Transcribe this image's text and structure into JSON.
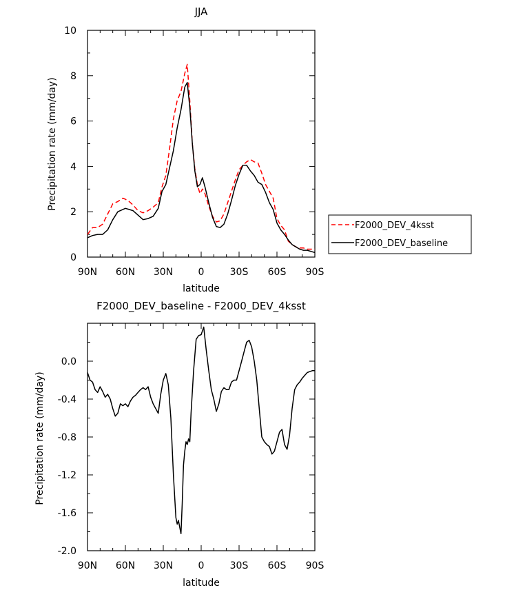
{
  "chart_data": [
    {
      "type": "line",
      "title": "JJA",
      "xlabel": "latitude",
      "ylabel": "Precipitation rate (mm/day)",
      "xlim": [
        90,
        -90
      ],
      "ylim": [
        0,
        10
      ],
      "x_ticks": [
        90,
        60,
        30,
        0,
        -30,
        -60,
        -90
      ],
      "x_tick_labels": [
        "90N",
        "60N",
        "30N",
        "0",
        "30S",
        "60S",
        "90S"
      ],
      "y_ticks": [
        0,
        2,
        4,
        6,
        8,
        10
      ],
      "y_tick_labels": [
        "0",
        "2",
        "4",
        "6",
        "8",
        "10"
      ],
      "legend_position": "outside-right",
      "series": [
        {
          "name": "F2000_DEV_4ksst",
          "color": "#ff0000",
          "style": "dashed",
          "x": [
            90,
            86,
            82,
            78,
            74,
            70,
            66,
            62,
            60,
            57,
            54,
            50,
            46,
            42,
            38,
            34,
            31,
            28,
            25,
            22,
            19,
            16,
            13,
            11,
            9,
            7,
            5,
            3,
            1,
            -1,
            -3,
            -6,
            -9,
            -12,
            -15,
            -18,
            -21,
            -24,
            -27,
            -30,
            -33,
            -36,
            -39,
            -42,
            -45,
            -48,
            -51,
            -54,
            -57,
            -60,
            -63,
            -66,
            -69,
            -72,
            -75,
            -78,
            -81,
            -84,
            -87,
            -90
          ],
          "y": [
            1.0,
            1.3,
            1.3,
            1.45,
            1.9,
            2.35,
            2.45,
            2.6,
            2.55,
            2.45,
            2.3,
            2.05,
            1.95,
            2.05,
            2.2,
            2.4,
            3.1,
            3.6,
            4.8,
            6.1,
            6.9,
            7.3,
            8.1,
            8.5,
            6.9,
            5.0,
            3.9,
            3.2,
            2.8,
            3.0,
            2.8,
            2.25,
            1.8,
            1.55,
            1.6,
            1.9,
            2.4,
            2.9,
            3.4,
            3.85,
            4.05,
            4.2,
            4.3,
            4.2,
            4.15,
            3.7,
            3.2,
            2.9,
            2.6,
            1.7,
            1.4,
            1.2,
            0.7,
            0.55,
            0.45,
            0.4,
            0.4,
            0.35,
            0.35,
            0.35
          ]
        },
        {
          "name": "F2000_DEV_baseline",
          "color": "#000000",
          "style": "solid",
          "x": [
            90,
            86,
            82,
            78,
            74,
            70,
            66,
            62,
            60,
            57,
            54,
            50,
            46,
            42,
            38,
            34,
            31,
            28,
            25,
            22,
            19,
            16,
            13,
            11,
            9,
            7,
            5,
            3,
            1,
            -1,
            -3,
            -6,
            -9,
            -12,
            -15,
            -18,
            -21,
            -24,
            -27,
            -30,
            -33,
            -36,
            -39,
            -42,
            -45,
            -48,
            -51,
            -54,
            -57,
            -60,
            -63,
            -66,
            -69,
            -72,
            -75,
            -78,
            -81,
            -84,
            -87,
            -90
          ],
          "y": [
            0.85,
            0.95,
            1.0,
            1.0,
            1.2,
            1.65,
            2.0,
            2.1,
            2.15,
            2.1,
            2.05,
            1.85,
            1.65,
            1.7,
            1.8,
            2.15,
            2.9,
            3.2,
            3.95,
            4.7,
            5.7,
            6.5,
            7.5,
            7.7,
            6.6,
            5.0,
            3.8,
            3.1,
            3.2,
            3.5,
            3.1,
            2.4,
            1.75,
            1.35,
            1.3,
            1.45,
            1.9,
            2.5,
            3.15,
            3.65,
            4.05,
            4.05,
            3.8,
            3.6,
            3.3,
            3.2,
            2.85,
            2.4,
            2.1,
            1.5,
            1.2,
            1.0,
            0.75,
            0.55,
            0.45,
            0.35,
            0.3,
            0.3,
            0.25,
            0.2
          ]
        }
      ]
    },
    {
      "type": "line",
      "title": "F2000_DEV_baseline - F2000_DEV_4ksst",
      "xlabel": "latitude",
      "ylabel": "Precipitation rate (mm/day)",
      "xlim": [
        90,
        -90
      ],
      "ylim": [
        -2.0,
        0.4
      ],
      "x_ticks": [
        90,
        60,
        30,
        0,
        -30,
        -60,
        -90
      ],
      "x_tick_labels": [
        "90N",
        "60N",
        "30N",
        "0",
        "30S",
        "60S",
        "90S"
      ],
      "y_ticks": [
        -2.0,
        -1.6,
        -1.2,
        -0.8,
        -0.4,
        0.0
      ],
      "y_tick_labels": [
        "-2.0",
        "-1.6",
        "-1.2",
        "-0.8",
        "-0.4",
        "0.0"
      ],
      "series": [
        {
          "name": "",
          "color": "#000000",
          "style": "solid",
          "x": [
            90,
            88,
            86,
            84,
            82,
            80,
            78,
            76,
            74,
            72,
            70,
            68,
            66,
            64,
            62,
            60,
            58,
            56,
            54,
            52,
            50,
            48,
            46,
            44,
            42,
            40,
            38,
            36,
            34,
            32,
            30,
            28,
            26,
            24,
            22,
            20,
            19,
            18,
            17,
            16,
            15,
            14,
            13,
            12,
            11,
            10,
            9,
            8,
            6,
            4,
            2,
            0,
            -2,
            -4,
            -6,
            -8,
            -10,
            -12,
            -14,
            -16,
            -18,
            -20,
            -22,
            -24,
            -26,
            -28,
            -30,
            -32,
            -34,
            -36,
            -38,
            -40,
            -42,
            -44,
            -46,
            -48,
            -50,
            -52,
            -54,
            -56,
            -58,
            -60,
            -62,
            -64,
            -66,
            -68,
            -70,
            -72,
            -74,
            -76,
            -78,
            -80,
            -82,
            -84,
            -86,
            -88,
            -90
          ],
          "y": [
            -0.12,
            -0.2,
            -0.22,
            -0.3,
            -0.33,
            -0.27,
            -0.32,
            -0.38,
            -0.35,
            -0.4,
            -0.5,
            -0.58,
            -0.55,
            -0.45,
            -0.47,
            -0.45,
            -0.48,
            -0.42,
            -0.38,
            -0.36,
            -0.33,
            -0.3,
            -0.28,
            -0.3,
            -0.27,
            -0.38,
            -0.45,
            -0.5,
            -0.55,
            -0.35,
            -0.2,
            -0.13,
            -0.25,
            -0.6,
            -1.2,
            -1.65,
            -1.72,
            -1.68,
            -1.75,
            -1.82,
            -1.5,
            -1.1,
            -0.95,
            -0.85,
            -0.88,
            -0.82,
            -0.85,
            -0.55,
            -0.1,
            0.23,
            0.27,
            0.28,
            0.36,
            0.12,
            -0.1,
            -0.3,
            -0.4,
            -0.53,
            -0.45,
            -0.32,
            -0.28,
            -0.3,
            -0.3,
            -0.22,
            -0.2,
            -0.2,
            -0.1,
            0.0,
            0.1,
            0.2,
            0.22,
            0.15,
            0.0,
            -0.2,
            -0.5,
            -0.8,
            -0.85,
            -0.88,
            -0.9,
            -0.98,
            -0.95,
            -0.85,
            -0.75,
            -0.72,
            -0.88,
            -0.93,
            -0.78,
            -0.5,
            -0.3,
            -0.25,
            -0.22,
            -0.18,
            -0.15,
            -0.12,
            -0.11,
            -0.1,
            -0.1
          ]
        }
      ]
    }
  ]
}
